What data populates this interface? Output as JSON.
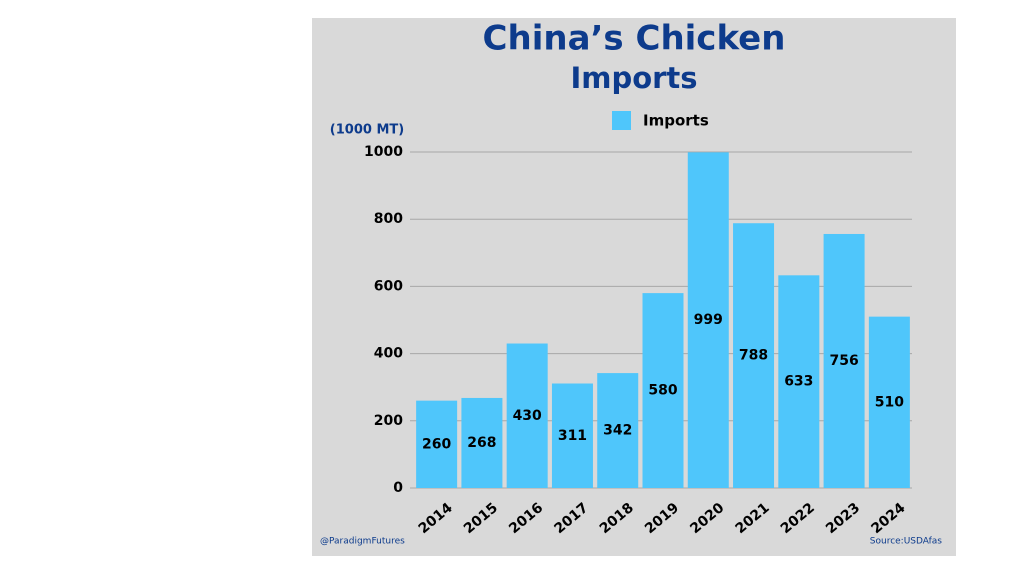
{
  "chart_data": {
    "type": "bar",
    "title": [
      "China’s Chicken",
      "Imports"
    ],
    "y_label": "(1000 MT)",
    "series": [
      {
        "name": "Imports",
        "color": "#4fc6fb",
        "values": [
          260,
          268,
          430,
          311,
          342,
          580,
          999,
          788,
          633,
          756,
          510
        ]
      }
    ],
    "categories": [
      "2014",
      "2015",
      "2016",
      "2017",
      "2018",
      "2019",
      "2020",
      "2021",
      "2022",
      "2023",
      "2024"
    ],
    "ylim": [
      0,
      1000
    ],
    "yticks": [
      0,
      200,
      400,
      600,
      800,
      1000
    ],
    "grid": true,
    "legend": "top",
    "credit": "@ParadigmFutures",
    "source": "Source:USDAfas"
  }
}
